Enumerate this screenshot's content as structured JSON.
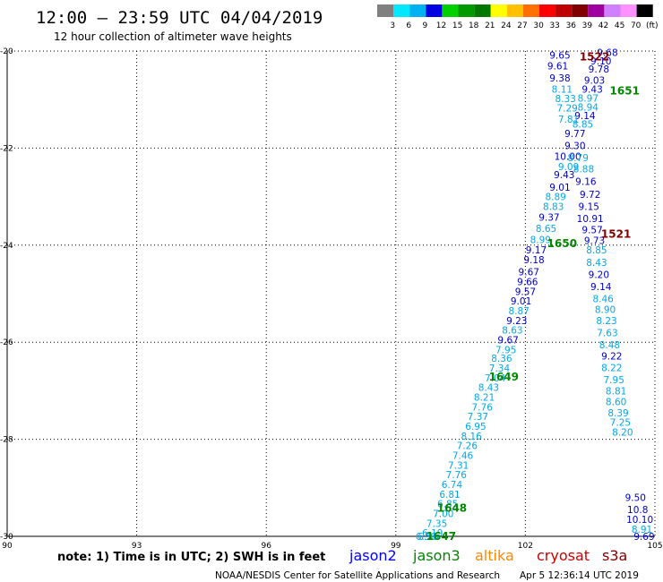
{
  "header": {
    "title": "12:00 — 23:59 UTC 04/04/2019",
    "subtitle": "12 hour collection of altimeter wave heights"
  },
  "legend_scale": {
    "labels": [
      "3",
      "6",
      "9",
      "12",
      "15",
      "18",
      "21",
      "24",
      "27",
      "30",
      "33",
      "36",
      "39",
      "42",
      "45",
      "70",
      "(ft)"
    ],
    "colors": [
      "#808080",
      "#00e8ff",
      "#00b0f0",
      "#0000e0",
      "#00d000",
      "#009a00",
      "#007800",
      "#ffff00",
      "#ffc000",
      "#ff7000",
      "#ff0000",
      "#c00000",
      "#800000",
      "#a000a0",
      "#d080ff",
      "#ff90ff",
      "#000000"
    ]
  },
  "series_labels": [
    {
      "name": "jason2",
      "color": "#0000ff"
    },
    {
      "name": "jason3",
      "color": "#008800"
    },
    {
      "name": "altika",
      "color": "#ff8800"
    },
    {
      "name": "cryosat",
      "color": "#cc0000"
    },
    {
      "name": "s3a",
      "color": "#800000"
    }
  ],
  "footer": {
    "note": "note: 1) Time is in UTC; 2) SWH is in feet",
    "credit": "NOAA/NESDIS Center for Satellite Applications and Research",
    "timestamp": "Apr  5 12:36:14 UTC 2019"
  },
  "chart_data": {
    "type": "scatter",
    "title": "12:00 — 23:59 UTC 04/04/2019",
    "subtitle": "12 hour collection of altimeter wave heights",
    "xlim": [
      90,
      105
    ],
    "ylim": [
      -30,
      -20
    ],
    "x_ticks": [
      "90",
      "93",
      "96",
      "99",
      "102",
      "105"
    ],
    "y_ticks": [
      "-20",
      "-22",
      "-24",
      "-26",
      "-28",
      "-30"
    ],
    "grid": true,
    "track_labels": [
      {
        "text": "1522",
        "lon": 103.6,
        "lat": -20.1,
        "color": "#800000"
      },
      {
        "text": "1651",
        "lon": 104.3,
        "lat": -20.8,
        "color": "#008800"
      },
      {
        "text": "1521",
        "lon": 104.1,
        "lat": -23.75,
        "color": "#800000"
      },
      {
        "text": "1650",
        "lon": 102.85,
        "lat": -23.95,
        "color": "#008800"
      },
      {
        "text": "1649",
        "lon": 101.5,
        "lat": -26.7,
        "color": "#008800"
      },
      {
        "text": "1648",
        "lon": 100.3,
        "lat": -29.4,
        "color": "#008800"
      },
      {
        "text": "1647",
        "lon": 100.05,
        "lat": -29.98,
        "color": "#008800"
      }
    ],
    "points": [
      {
        "lon": 102.8,
        "lat": -20.08,
        "v": "9.65",
        "c": "#0000cc"
      },
      {
        "lon": 103.9,
        "lat": -20.03,
        "v": "9.68",
        "c": "#0000cc"
      },
      {
        "lon": 103.75,
        "lat": -20.2,
        "v": "9.10",
        "c": "#0000cc"
      },
      {
        "lon": 102.75,
        "lat": -20.3,
        "v": "9.61",
        "c": "#0000cc"
      },
      {
        "lon": 103.7,
        "lat": -20.37,
        "v": "9.78",
        "c": "#0000cc"
      },
      {
        "lon": 102.8,
        "lat": -20.55,
        "v": "9.38",
        "c": "#0000cc"
      },
      {
        "lon": 103.6,
        "lat": -20.6,
        "v": "9.03",
        "c": "#0000cc"
      },
      {
        "lon": 102.85,
        "lat": -20.78,
        "v": "8.11",
        "c": "#00a8e8"
      },
      {
        "lon": 103.55,
        "lat": -20.78,
        "v": "9.43",
        "c": "#0000cc"
      },
      {
        "lon": 102.93,
        "lat": -20.98,
        "v": "8.33",
        "c": "#00a8e8"
      },
      {
        "lon": 103.45,
        "lat": -20.97,
        "v": "8.97",
        "c": "#00a8e8"
      },
      {
        "lon": 102.97,
        "lat": -21.17,
        "v": "7.29",
        "c": "#00a8e8"
      },
      {
        "lon": 103.45,
        "lat": -21.15,
        "v": "8.94",
        "c": "#00a8e8"
      },
      {
        "lon": 103.38,
        "lat": -21.33,
        "v": "9.14",
        "c": "#0000cc"
      },
      {
        "lon": 103.0,
        "lat": -21.4,
        "v": "7.81",
        "c": "#00a8e8"
      },
      {
        "lon": 103.33,
        "lat": -21.5,
        "v": "8.85",
        "c": "#00a8e8"
      },
      {
        "lon": 103.15,
        "lat": -21.7,
        "v": "9.77",
        "c": "#0000cc"
      },
      {
        "lon": 103.15,
        "lat": -21.95,
        "v": "9.30",
        "c": "#0000cc"
      },
      {
        "lon": 102.98,
        "lat": -22.17,
        "v": "10.00",
        "c": "#0000cc"
      },
      {
        "lon": 103.22,
        "lat": -22.2,
        "v": "8.79",
        "c": "#00a8e8"
      },
      {
        "lon": 103.0,
        "lat": -22.38,
        "v": "9.09",
        "c": "#00a8e8"
      },
      {
        "lon": 103.35,
        "lat": -22.43,
        "v": "8.88",
        "c": "#00a8e8"
      },
      {
        "lon": 102.9,
        "lat": -22.55,
        "v": "9.43",
        "c": "#0000cc"
      },
      {
        "lon": 103.4,
        "lat": -22.68,
        "v": "9.16",
        "c": "#0000cc"
      },
      {
        "lon": 102.8,
        "lat": -22.8,
        "v": "9.01",
        "c": "#0000cc"
      },
      {
        "lon": 103.5,
        "lat": -22.95,
        "v": "9.72",
        "c": "#0000cc"
      },
      {
        "lon": 102.7,
        "lat": -23.0,
        "v": "8.89",
        "c": "#00a8e8"
      },
      {
        "lon": 102.65,
        "lat": -23.2,
        "v": "8.83",
        "c": "#00a8e8"
      },
      {
        "lon": 103.47,
        "lat": -23.2,
        "v": "9.15",
        "c": "#0000cc"
      },
      {
        "lon": 102.55,
        "lat": -23.42,
        "v": "9.37",
        "c": "#0000cc"
      },
      {
        "lon": 103.5,
        "lat": -23.45,
        "v": "10.91",
        "c": "#0000cc"
      },
      {
        "lon": 102.48,
        "lat": -23.65,
        "v": "8.65",
        "c": "#00a8e8"
      },
      {
        "lon": 103.55,
        "lat": -23.68,
        "v": "9.57",
        "c": "#0000cc"
      },
      {
        "lon": 102.35,
        "lat": -23.88,
        "v": "8.99",
        "c": "#00a8e8"
      },
      {
        "lon": 103.6,
        "lat": -23.9,
        "v": "9.73",
        "c": "#0000cc"
      },
      {
        "lon": 102.25,
        "lat": -24.1,
        "v": "9.17",
        "c": "#0000cc"
      },
      {
        "lon": 103.65,
        "lat": -24.1,
        "v": "8.85",
        "c": "#00a8e8"
      },
      {
        "lon": 102.2,
        "lat": -24.3,
        "v": "9.18",
        "c": "#0000cc"
      },
      {
        "lon": 103.65,
        "lat": -24.35,
        "v": "8.43",
        "c": "#00a8e8"
      },
      {
        "lon": 102.08,
        "lat": -24.55,
        "v": "9.67",
        "c": "#0000cc"
      },
      {
        "lon": 103.7,
        "lat": -24.6,
        "v": "9.20",
        "c": "#0000cc"
      },
      {
        "lon": 102.05,
        "lat": -24.75,
        "v": "9.66",
        "c": "#0000cc"
      },
      {
        "lon": 103.75,
        "lat": -24.85,
        "v": "9.14",
        "c": "#0000cc"
      },
      {
        "lon": 102.0,
        "lat": -24.95,
        "v": "9.57",
        "c": "#0000cc"
      },
      {
        "lon": 101.9,
        "lat": -25.15,
        "v": "9.01",
        "c": "#0000cc"
      },
      {
        "lon": 103.8,
        "lat": -25.1,
        "v": "8.46",
        "c": "#00a8e8"
      },
      {
        "lon": 101.85,
        "lat": -25.35,
        "v": "8.87",
        "c": "#00a8e8"
      },
      {
        "lon": 103.85,
        "lat": -25.32,
        "v": "8.90",
        "c": "#00a8e8"
      },
      {
        "lon": 101.8,
        "lat": -25.55,
        "v": "9.23",
        "c": "#0000cc"
      },
      {
        "lon": 103.88,
        "lat": -25.55,
        "v": "8.23",
        "c": "#00a8e8"
      },
      {
        "lon": 101.7,
        "lat": -25.75,
        "v": "8.63",
        "c": "#00a8e8"
      },
      {
        "lon": 103.9,
        "lat": -25.8,
        "v": "7.63",
        "c": "#00a8e8"
      },
      {
        "lon": 101.6,
        "lat": -25.95,
        "v": "9.67",
        "c": "#0000cc"
      },
      {
        "lon": 101.55,
        "lat": -26.15,
        "v": "7.95",
        "c": "#00a8e8"
      },
      {
        "lon": 103.95,
        "lat": -26.05,
        "v": "8.48",
        "c": "#00a8e8"
      },
      {
        "lon": 101.45,
        "lat": -26.33,
        "v": "8.36",
        "c": "#00a8e8"
      },
      {
        "lon": 104.0,
        "lat": -26.28,
        "v": "9.22",
        "c": "#0000cc"
      },
      {
        "lon": 101.4,
        "lat": -26.53,
        "v": "7.34",
        "c": "#00a8e8"
      },
      {
        "lon": 104.0,
        "lat": -26.52,
        "v": "8.22",
        "c": "#00a8e8"
      },
      {
        "lon": 101.3,
        "lat": -26.73,
        "v": "7.04",
        "c": "#00a8e8"
      },
      {
        "lon": 104.05,
        "lat": -26.77,
        "v": "7.95",
        "c": "#00a8e8"
      },
      {
        "lon": 101.15,
        "lat": -26.93,
        "v": "8.43",
        "c": "#00a8e8"
      },
      {
        "lon": 101.05,
        "lat": -27.13,
        "v": "8.21",
        "c": "#00a8e8"
      },
      {
        "lon": 104.1,
        "lat": -27.0,
        "v": "8.81",
        "c": "#00a8e8"
      },
      {
        "lon": 101.0,
        "lat": -27.33,
        "v": "7.76",
        "c": "#00a8e8"
      },
      {
        "lon": 104.1,
        "lat": -27.22,
        "v": "8.60",
        "c": "#00a8e8"
      },
      {
        "lon": 100.9,
        "lat": -27.53,
        "v": "7.37",
        "c": "#00a8e8"
      },
      {
        "lon": 104.15,
        "lat": -27.45,
        "v": "8.39",
        "c": "#00a8e8"
      },
      {
        "lon": 100.85,
        "lat": -27.73,
        "v": "6.95",
        "c": "#00a8e8"
      },
      {
        "lon": 104.2,
        "lat": -27.65,
        "v": "7.25",
        "c": "#00a8e8"
      },
      {
        "lon": 100.75,
        "lat": -27.93,
        "v": "8.16",
        "c": "#00a8e8"
      },
      {
        "lon": 104.25,
        "lat": -27.85,
        "v": "8.20",
        "c": "#00a8e8"
      },
      {
        "lon": 100.65,
        "lat": -28.13,
        "v": "7.26",
        "c": "#00a8e8"
      },
      {
        "lon": 100.55,
        "lat": -28.33,
        "v": "7.46",
        "c": "#00a8e8"
      },
      {
        "lon": 100.45,
        "lat": -28.53,
        "v": "7.31",
        "c": "#00a8e8"
      },
      {
        "lon": 100.4,
        "lat": -28.73,
        "v": "7.76",
        "c": "#00a8e8"
      },
      {
        "lon": 100.3,
        "lat": -28.93,
        "v": "6.74",
        "c": "#00a8e8"
      },
      {
        "lon": 100.25,
        "lat": -29.13,
        "v": "6.81",
        "c": "#00a8e8"
      },
      {
        "lon": 100.2,
        "lat": -29.33,
        "v": "6.85",
        "c": "#00a8e8"
      },
      {
        "lon": 100.1,
        "lat": -29.53,
        "v": "7.00",
        "c": "#00a8e8"
      },
      {
        "lon": 99.95,
        "lat": -29.73,
        "v": "7.35",
        "c": "#00a8e8"
      },
      {
        "lon": 99.85,
        "lat": -29.93,
        "v": "6.19",
        "c": "#00a8e8"
      },
      {
        "lon": 99.75,
        "lat": -30.0,
        "v": "6.56",
        "c": "#00a8e8"
      },
      {
        "lon": 99.7,
        "lat": -30.0,
        "v": "6.50",
        "c": "#00a8e8"
      },
      {
        "lon": 104.55,
        "lat": -29.2,
        "v": "9.50",
        "c": "#0000cc"
      },
      {
        "lon": 104.6,
        "lat": -29.45,
        "v": "10.8",
        "c": "#0000cc"
      },
      {
        "lon": 104.65,
        "lat": -29.65,
        "v": "10.10",
        "c": "#0000cc"
      },
      {
        "lon": 104.7,
        "lat": -29.85,
        "v": "8.91",
        "c": "#00a8e8"
      },
      {
        "lon": 104.75,
        "lat": -30.0,
        "v": "9.69",
        "c": "#0000cc"
      }
    ]
  }
}
